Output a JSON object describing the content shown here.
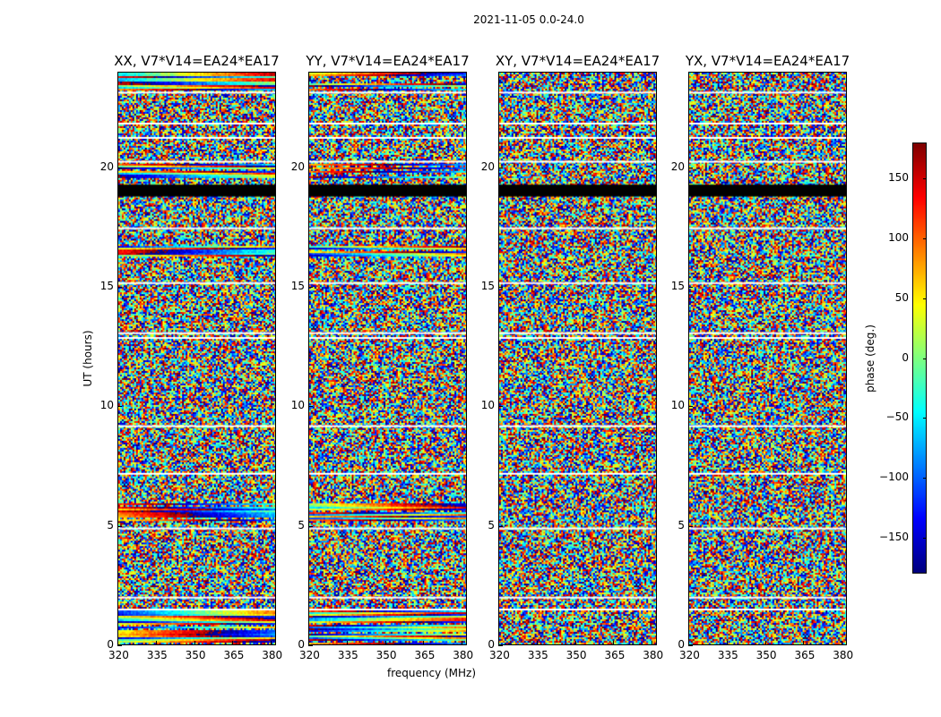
{
  "suptitle": "2021-11-05 0.0-24.0",
  "chart_data": {
    "type": "heatmap",
    "panels": [
      {
        "title": "XX, V7*V14=EA24*EA17"
      },
      {
        "title": "YY, V7*V14=EA24*EA17"
      },
      {
        "title": "XY, V7*V14=EA24*EA17"
      },
      {
        "title": "YX, V7*V14=EA24*EA17"
      }
    ],
    "xlabel": "frequency (MHz)",
    "ylabel": "UT (hours)",
    "xlim": [
      320,
      382
    ],
    "ylim": [
      0,
      24
    ],
    "xticks": [
      "320",
      "335",
      "350",
      "365",
      "380"
    ],
    "xtick_values": [
      320,
      335,
      350,
      365,
      380
    ],
    "yticks": [
      "0",
      "5",
      "10",
      "15",
      "20"
    ],
    "ytick_values": [
      0,
      5,
      10,
      15,
      20
    ],
    "colorbar": {
      "label": "phase (deg.)",
      "range": [
        -180,
        180
      ],
      "ticks": [
        "150",
        "100",
        "50",
        "0",
        "−50",
        "−100",
        "−150"
      ],
      "tick_values": [
        150,
        100,
        50,
        0,
        -50,
        -100,
        -150
      ],
      "colormap": "jet"
    },
    "flagged_black_hours": [
      [
        18.8,
        19.3
      ]
    ],
    "blank_rows_hours": [
      1.5,
      2.0,
      4.9,
      7.2,
      9.2,
      12.9,
      13.1,
      15.2,
      17.5,
      20.3,
      21.3,
      21.9,
      23.2
    ]
  }
}
